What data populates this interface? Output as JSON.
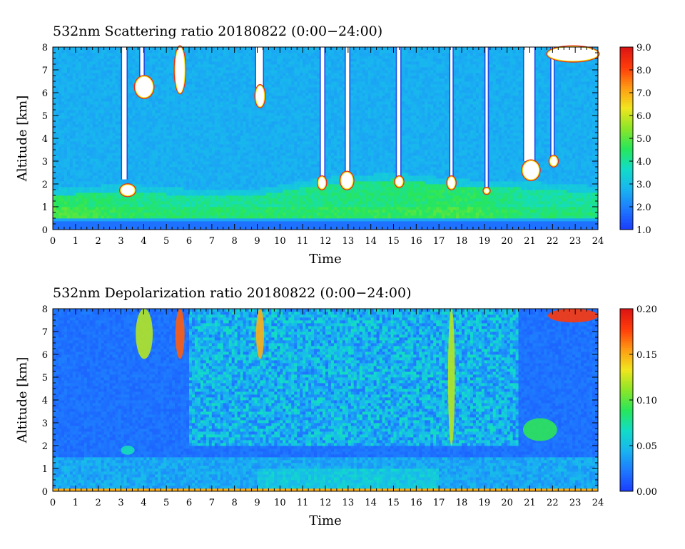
{
  "colormap": [
    "#1a3cff",
    "#1e78ff",
    "#19b4f0",
    "#12dcc8",
    "#28e65a",
    "#8ce628",
    "#f0e61e",
    "#ff9b14",
    "#ff3c0a",
    "#dc1414"
  ],
  "panels": [
    {
      "title": "532nm Scattering ratio  20180822 (0:00−24:00)",
      "xlabel": "Time",
      "ylabel": "Altitude [km]",
      "colorbar_ticks": [
        "1.0",
        "2.0",
        "3.0",
        "4.0",
        "5.0",
        "6.0",
        "7.0",
        "8.0",
        "9.0"
      ]
    },
    {
      "title": "532nm Depolarization ratio  20180822 (0:00−24:00)",
      "xlabel": "Time",
      "ylabel": "Altitude [km]",
      "colorbar_ticks": [
        "0.00",
        "0.05",
        "0.10",
        "0.15",
        "0.20"
      ]
    }
  ],
  "chart_data": [
    {
      "type": "heatmap",
      "title": "532nm Scattering ratio  20180822 (0:00−24:00)",
      "xlabel": "Time",
      "ylabel": "Altitude [km]",
      "xlim": [
        0,
        24
      ],
      "ylim": [
        0,
        8
      ],
      "x_ticks": [
        "0",
        "1",
        "2",
        "3",
        "4",
        "5",
        "6",
        "7",
        "8",
        "9",
        "10",
        "11",
        "12",
        "13",
        "14",
        "15",
        "16",
        "17",
        "18",
        "19",
        "20",
        "21",
        "22",
        "23",
        "24"
      ],
      "y_ticks": [
        "0",
        "1",
        "2",
        "3",
        "4",
        "5",
        "6",
        "7",
        "8"
      ],
      "colorbar": {
        "min": 1.0,
        "max": 9.0,
        "ticks": [
          "1.0",
          "2.0",
          "3.0",
          "4.0",
          "5.0",
          "6.0",
          "7.0",
          "8.0",
          "9.0"
        ]
      },
      "background_value": 2.7,
      "boundary_layer": [
        {
          "time": 0,
          "top_km": 1.5,
          "value": 4.6
        },
        {
          "time": 3,
          "top_km": 1.7,
          "value": 4.2
        },
        {
          "time": 6,
          "top_km": 1.5,
          "value": 4.0
        },
        {
          "time": 9,
          "top_km": 1.5,
          "value": 4.1
        },
        {
          "time": 12,
          "top_km": 2.0,
          "value": 4.2
        },
        {
          "time": 15,
          "top_km": 2.2,
          "value": 4.3
        },
        {
          "time": 18,
          "top_km": 1.9,
          "value": 4.5
        },
        {
          "time": 21,
          "top_km": 1.8,
          "value": 4.0
        },
        {
          "time": 24,
          "top_km": 1.6,
          "value": 4.0
        }
      ],
      "cloud_patches": [
        {
          "t0": 3.0,
          "t1": 3.6,
          "alt0": 1.5,
          "alt1": 1.95
        },
        {
          "t0": 3.65,
          "t1": 4.4,
          "alt0": 5.8,
          "alt1": 6.7
        },
        {
          "t0": 5.4,
          "t1": 5.8,
          "alt0": 6.0,
          "alt1": 8.0
        },
        {
          "t0": 8.95,
          "t1": 9.3,
          "alt0": 5.4,
          "alt1": 6.3
        },
        {
          "t0": 11.7,
          "t1": 12.0,
          "alt0": 1.8,
          "alt1": 2.3
        },
        {
          "t0": 12.7,
          "t1": 13.2,
          "alt0": 1.8,
          "alt1": 2.5
        },
        {
          "t0": 15.1,
          "t1": 15.4,
          "alt0": 1.9,
          "alt1": 2.3
        },
        {
          "t0": 17.4,
          "t1": 17.7,
          "alt0": 1.8,
          "alt1": 2.3
        },
        {
          "t0": 19.0,
          "t1": 19.2,
          "alt0": 1.6,
          "alt1": 1.8
        },
        {
          "t0": 20.7,
          "t1": 21.4,
          "alt0": 2.2,
          "alt1": 3.0
        },
        {
          "t0": 21.9,
          "t1": 22.2,
          "alt0": 2.8,
          "alt1": 3.2
        },
        {
          "t0": 21.8,
          "t1": 24.0,
          "alt0": 7.4,
          "alt1": 8.0
        }
      ],
      "signal_gaps": [
        {
          "t0": 3.05,
          "t1": 3.25,
          "alt0": 2.2,
          "alt1": 8.0
        },
        {
          "t0": 3.85,
          "t1": 4.0,
          "alt0": 6.5,
          "alt1": 8.0
        },
        {
          "t0": 8.95,
          "t1": 9.25,
          "alt0": 6.2,
          "alt1": 8.0
        },
        {
          "t0": 11.8,
          "t1": 11.95,
          "alt0": 2.3,
          "alt1": 8.0
        },
        {
          "t0": 12.9,
          "t1": 13.05,
          "alt0": 2.5,
          "alt1": 8.0
        },
        {
          "t0": 15.15,
          "t1": 15.3,
          "alt0": 2.3,
          "alt1": 8.0
        },
        {
          "t0": 17.5,
          "t1": 17.6,
          "alt0": 2.3,
          "alt1": 8.0
        },
        {
          "t0": 19.05,
          "t1": 19.15,
          "alt0": 1.8,
          "alt1": 8.0
        },
        {
          "t0": 20.75,
          "t1": 21.2,
          "alt0": 3.0,
          "alt1": 8.0
        },
        {
          "t0": 21.95,
          "t1": 22.05,
          "alt0": 3.2,
          "alt1": 8.0
        }
      ]
    },
    {
      "type": "heatmap",
      "title": "532nm Depolarization ratio  20180822 (0:00−24:00)",
      "xlabel": "Time",
      "ylabel": "Altitude [km]",
      "xlim": [
        0,
        24
      ],
      "ylim": [
        0,
        8
      ],
      "x_ticks": [
        "0",
        "1",
        "2",
        "3",
        "4",
        "5",
        "6",
        "7",
        "8",
        "9",
        "10",
        "11",
        "12",
        "13",
        "14",
        "15",
        "16",
        "17",
        "18",
        "19",
        "20",
        "21",
        "22",
        "23",
        "24"
      ],
      "y_ticks": [
        "0",
        "1",
        "2",
        "3",
        "4",
        "5",
        "6",
        "7",
        "8"
      ],
      "colorbar": {
        "min": 0.0,
        "max": 0.2,
        "ticks": [
          "0.00",
          "0.05",
          "0.10",
          "0.15",
          "0.20"
        ]
      },
      "background_value": 0.02,
      "noisy_region": {
        "t0": 6.0,
        "t1": 20.5,
        "alt0": 2.0,
        "alt1": 8.0,
        "value": 0.05
      },
      "surface_layer_value": 0.15,
      "boundary_layer_value": 0.04,
      "cloud_patches": [
        {
          "t0": 3.0,
          "t1": 3.6,
          "alt0": 1.6,
          "alt1": 2.0,
          "value": 0.07
        },
        {
          "t0": 3.65,
          "t1": 4.4,
          "alt0": 5.8,
          "alt1": 8.0,
          "value": 0.12
        },
        {
          "t0": 5.4,
          "t1": 5.8,
          "alt0": 5.8,
          "alt1": 8.0,
          "value": 0.17
        },
        {
          "t0": 8.95,
          "t1": 9.3,
          "alt0": 5.8,
          "alt1": 8.0,
          "value": 0.15
        },
        {
          "t0": 17.4,
          "t1": 17.7,
          "alt0": 2.0,
          "alt1": 8.0,
          "value": 0.12
        },
        {
          "t0": 20.7,
          "t1": 22.2,
          "alt0": 2.2,
          "alt1": 3.2,
          "value": 0.09
        },
        {
          "t0": 21.8,
          "t1": 24.0,
          "alt0": 7.4,
          "alt1": 8.0,
          "value": 0.18
        }
      ]
    }
  ]
}
